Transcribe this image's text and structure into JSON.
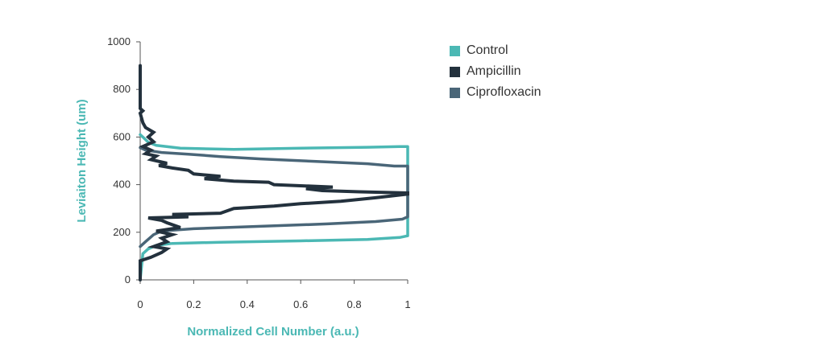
{
  "chart_data": {
    "type": "line",
    "title": "",
    "xlabel": "Normalized Cell Number (a.u.)",
    "ylabel": "Leviaiton Height (um)",
    "xlim": [
      0,
      1
    ],
    "ylim": [
      0,
      1000
    ],
    "xticks": [
      "0",
      "0.2",
      "0.4",
      "0.6",
      "0.8",
      "1"
    ],
    "yticks": [
      "0",
      "200",
      "400",
      "600",
      "800",
      "1000"
    ],
    "grid": false,
    "legend_position": "right",
    "axis_title_color": "#4bb8b4",
    "series": [
      {
        "name": "Control",
        "color": "#4bb8b4",
        "points": [
          [
            0,
            0
          ],
          [
            0.01,
            110
          ],
          [
            0.03,
            130
          ],
          [
            0.06,
            145
          ],
          [
            0.12,
            153
          ],
          [
            0.3,
            158
          ],
          [
            0.6,
            164
          ],
          [
            0.85,
            170
          ],
          [
            0.97,
            178
          ],
          [
            1,
            185
          ],
          [
            1,
            200
          ],
          [
            1,
            400
          ],
          [
            1,
            520
          ],
          [
            1,
            560
          ],
          [
            0.97,
            560
          ],
          [
            0.85,
            557
          ],
          [
            0.6,
            553
          ],
          [
            0.35,
            548
          ],
          [
            0.15,
            553
          ],
          [
            0.06,
            565
          ],
          [
            0.03,
            578
          ],
          [
            0.01,
            600
          ],
          [
            0,
            610
          ]
        ]
      },
      {
        "name": "Ampicillin",
        "color": "#23313d",
        "points": [
          [
            0,
            0
          ],
          [
            0,
            80
          ],
          [
            0.04,
            95
          ],
          [
            0.08,
            115
          ],
          [
            0.1,
            130
          ],
          [
            0.05,
            140
          ],
          [
            0.1,
            160
          ],
          [
            0.08,
            175
          ],
          [
            0.12,
            190
          ],
          [
            0.06,
            205
          ],
          [
            0.15,
            220
          ],
          [
            0.1,
            240
          ],
          [
            0.08,
            250
          ],
          [
            0.03,
            260
          ],
          [
            0.18,
            265
          ],
          [
            0.12,
            275
          ],
          [
            0.3,
            280
          ],
          [
            0.35,
            300
          ],
          [
            0.5,
            310
          ],
          [
            0.6,
            320
          ],
          [
            0.75,
            330
          ],
          [
            0.88,
            345
          ],
          [
            1,
            360
          ],
          [
            1,
            365
          ],
          [
            0.82,
            370
          ],
          [
            0.68,
            375
          ],
          [
            0.62,
            383
          ],
          [
            0.72,
            390
          ],
          [
            0.5,
            400
          ],
          [
            0.48,
            410
          ],
          [
            0.35,
            415
          ],
          [
            0.24,
            425
          ],
          [
            0.3,
            435
          ],
          [
            0.2,
            445
          ],
          [
            0.18,
            460
          ],
          [
            0.12,
            470
          ],
          [
            0.07,
            480
          ],
          [
            0.1,
            490
          ],
          [
            0.04,
            505
          ],
          [
            0.06,
            520
          ],
          [
            0.02,
            530
          ],
          [
            0.04,
            545
          ],
          [
            0.01,
            560
          ],
          [
            0.05,
            580
          ],
          [
            0.03,
            600
          ],
          [
            0.05,
            620
          ],
          [
            0.02,
            640
          ],
          [
            0.01,
            660
          ],
          [
            0,
            700
          ],
          [
            0.01,
            710
          ],
          [
            0,
            720
          ],
          [
            0,
            880
          ],
          [
            0,
            900
          ]
        ]
      },
      {
        "name": "Ciprofloxacin",
        "color": "#4a6678",
        "points": [
          [
            0,
            140
          ],
          [
            0.02,
            160
          ],
          [
            0.05,
            190
          ],
          [
            0.08,
            205
          ],
          [
            0.2,
            215
          ],
          [
            0.45,
            225
          ],
          [
            0.7,
            235
          ],
          [
            0.88,
            245
          ],
          [
            0.98,
            255
          ],
          [
            1,
            265
          ],
          [
            1,
            280
          ],
          [
            1,
            400
          ],
          [
            1,
            460
          ],
          [
            1,
            478
          ],
          [
            0.95,
            478
          ],
          [
            0.85,
            488
          ],
          [
            0.65,
            498
          ],
          [
            0.45,
            508
          ],
          [
            0.3,
            518
          ],
          [
            0.18,
            528
          ],
          [
            0.08,
            535
          ],
          [
            0.02,
            545
          ],
          [
            0,
            555
          ]
        ]
      }
    ]
  }
}
